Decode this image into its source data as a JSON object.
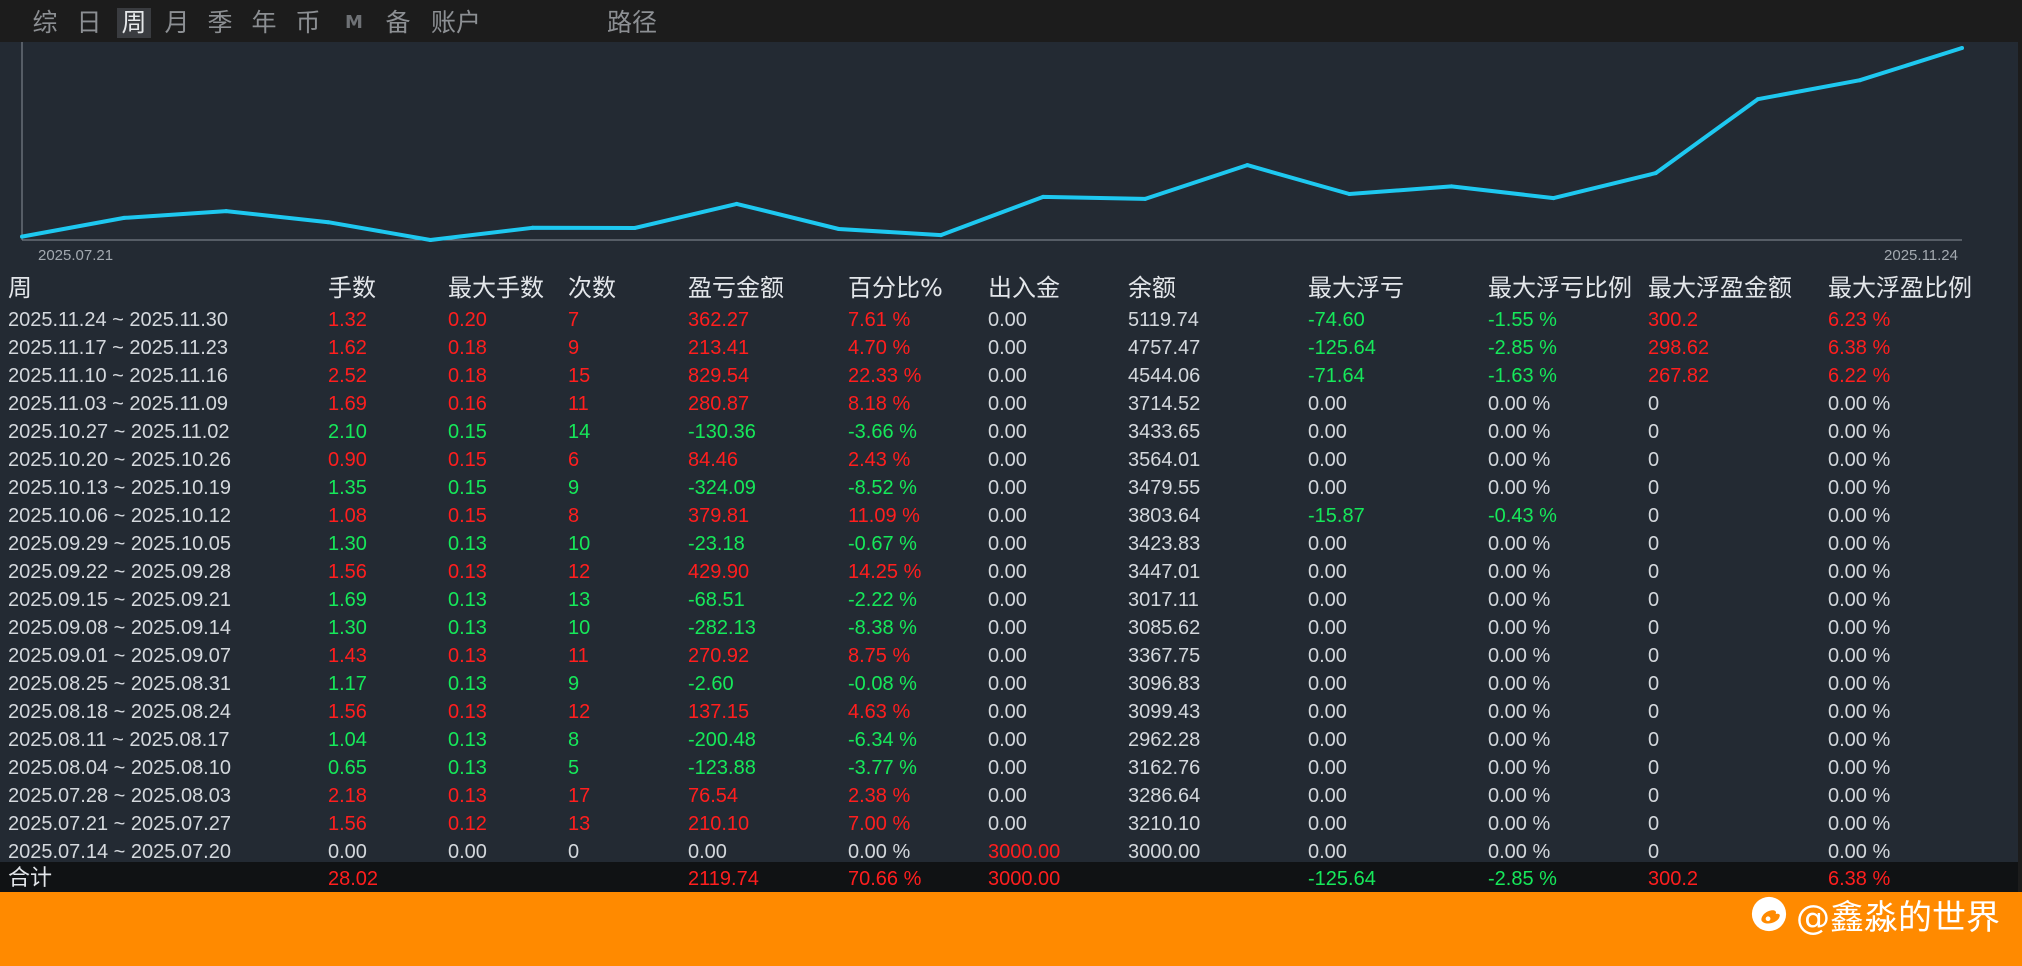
{
  "tabs": [
    {
      "label": "综",
      "active": false
    },
    {
      "label": "日",
      "active": false
    },
    {
      "label": "周",
      "active": true
    },
    {
      "label": "月",
      "active": false
    },
    {
      "label": "季",
      "active": false
    },
    {
      "label": "年",
      "active": false
    },
    {
      "label": "币",
      "active": false
    },
    {
      "label": "M",
      "active": false
    },
    {
      "label": "备",
      "active": false
    },
    {
      "label": "账户",
      "active": false
    },
    {
      "label": "路径",
      "active": false
    }
  ],
  "chart_data": {
    "type": "line",
    "color": "#1ec8f0",
    "x": [
      "2025.07.14",
      "2025.07.21",
      "2025.07.28",
      "2025.08.04",
      "2025.08.11",
      "2025.08.18",
      "2025.08.25",
      "2025.09.01",
      "2025.09.08",
      "2025.09.15",
      "2025.09.22",
      "2025.09.29",
      "2025.10.06",
      "2025.10.13",
      "2025.10.20",
      "2025.10.27",
      "2025.11.03",
      "2025.11.10",
      "2025.11.17",
      "2025.11.24"
    ],
    "values": [
      3000.0,
      3210.1,
      3286.64,
      3162.76,
      2962.28,
      3099.43,
      3096.83,
      3367.75,
      3085.62,
      3017.11,
      3447.01,
      3423.83,
      3803.64,
      3479.55,
      3564.01,
      3433.65,
      3714.52,
      4544.06,
      4757.47,
      5119.74
    ],
    "x_tick_first": "2025.07.21",
    "x_tick_last": "2025.11.24"
  },
  "table": {
    "headers": [
      "周",
      "手数",
      "最大手数",
      "次数",
      "盈亏金额",
      "百分比%",
      "出入金",
      "余额",
      "最大浮亏",
      "最大浮亏比例",
      "最大浮盈金额",
      "最大浮盈比例"
    ],
    "rows": [
      [
        "2025.11.24 ~ 2025.11.30",
        "1.32",
        "0.20",
        "7",
        "362.27",
        "7.61 %",
        "0.00",
        "5119.74",
        "-74.60",
        "-1.55 %",
        "300.2",
        "6.23 %"
      ],
      [
        "2025.11.17 ~ 2025.11.23",
        "1.62",
        "0.18",
        "9",
        "213.41",
        "4.70 %",
        "0.00",
        "4757.47",
        "-125.64",
        "-2.85 %",
        "298.62",
        "6.38 %"
      ],
      [
        "2025.11.10 ~ 2025.11.16",
        "2.52",
        "0.18",
        "15",
        "829.54",
        "22.33 %",
        "0.00",
        "4544.06",
        "-71.64",
        "-1.63 %",
        "267.82",
        "6.22 %"
      ],
      [
        "2025.11.03 ~ 2025.11.09",
        "1.69",
        "0.16",
        "11",
        "280.87",
        "8.18 %",
        "0.00",
        "3714.52",
        "0.00",
        "0.00 %",
        "0",
        "0.00 %"
      ],
      [
        "2025.10.27 ~ 2025.11.02",
        "2.10",
        "0.15",
        "14",
        "-130.36",
        "-3.66 %",
        "0.00",
        "3433.65",
        "0.00",
        "0.00 %",
        "0",
        "0.00 %"
      ],
      [
        "2025.10.20 ~ 2025.10.26",
        "0.90",
        "0.15",
        "6",
        "84.46",
        "2.43 %",
        "0.00",
        "3564.01",
        "0.00",
        "0.00 %",
        "0",
        "0.00 %"
      ],
      [
        "2025.10.13 ~ 2025.10.19",
        "1.35",
        "0.15",
        "9",
        "-324.09",
        "-8.52 %",
        "0.00",
        "3479.55",
        "0.00",
        "0.00 %",
        "0",
        "0.00 %"
      ],
      [
        "2025.10.06 ~ 2025.10.12",
        "1.08",
        "0.15",
        "8",
        "379.81",
        "11.09 %",
        "0.00",
        "3803.64",
        "-15.87",
        "-0.43 %",
        "0",
        "0.00 %"
      ],
      [
        "2025.09.29 ~ 2025.10.05",
        "1.30",
        "0.13",
        "10",
        "-23.18",
        "-0.67 %",
        "0.00",
        "3423.83",
        "0.00",
        "0.00 %",
        "0",
        "0.00 %"
      ],
      [
        "2025.09.22 ~ 2025.09.28",
        "1.56",
        "0.13",
        "12",
        "429.90",
        "14.25 %",
        "0.00",
        "3447.01",
        "0.00",
        "0.00 %",
        "0",
        "0.00 %"
      ],
      [
        "2025.09.15 ~ 2025.09.21",
        "1.69",
        "0.13",
        "13",
        "-68.51",
        "-2.22 %",
        "0.00",
        "3017.11",
        "0.00",
        "0.00 %",
        "0",
        "0.00 %"
      ],
      [
        "2025.09.08 ~ 2025.09.14",
        "1.30",
        "0.13",
        "10",
        "-282.13",
        "-8.38 %",
        "0.00",
        "3085.62",
        "0.00",
        "0.00 %",
        "0",
        "0.00 %"
      ],
      [
        "2025.09.01 ~ 2025.09.07",
        "1.43",
        "0.13",
        "11",
        "270.92",
        "8.75 %",
        "0.00",
        "3367.75",
        "0.00",
        "0.00 %",
        "0",
        "0.00 %"
      ],
      [
        "2025.08.25 ~ 2025.08.31",
        "1.17",
        "0.13",
        "9",
        "-2.60",
        "-0.08 %",
        "0.00",
        "3096.83",
        "0.00",
        "0.00 %",
        "0",
        "0.00 %"
      ],
      [
        "2025.08.18 ~ 2025.08.24",
        "1.56",
        "0.13",
        "12",
        "137.15",
        "4.63 %",
        "0.00",
        "3099.43",
        "0.00",
        "0.00 %",
        "0",
        "0.00 %"
      ],
      [
        "2025.08.11 ~ 2025.08.17",
        "1.04",
        "0.13",
        "8",
        "-200.48",
        "-6.34 %",
        "0.00",
        "2962.28",
        "0.00",
        "0.00 %",
        "0",
        "0.00 %"
      ],
      [
        "2025.08.04 ~ 2025.08.10",
        "0.65",
        "0.13",
        "5",
        "-123.88",
        "-3.77 %",
        "0.00",
        "3162.76",
        "0.00",
        "0.00 %",
        "0",
        "0.00 %"
      ],
      [
        "2025.07.28 ~ 2025.08.03",
        "2.18",
        "0.13",
        "17",
        "76.54",
        "2.38 %",
        "0.00",
        "3286.64",
        "0.00",
        "0.00 %",
        "0",
        "0.00 %"
      ],
      [
        "2025.07.21 ~ 2025.07.27",
        "1.56",
        "0.12",
        "13",
        "210.10",
        "7.00 %",
        "0.00",
        "3210.10",
        "0.00",
        "0.00 %",
        "0",
        "0.00 %"
      ],
      [
        "2025.07.14 ~ 2025.07.20",
        "0.00",
        "0.00",
        "0",
        "0.00",
        "0.00 %",
        "3000.00",
        "3000.00",
        "0.00",
        "0.00 %",
        "0",
        "0.00 %"
      ]
    ],
    "total": [
      "合计",
      "28.02",
      "",
      "",
      "2119.74",
      "70.66 %",
      "3000.00",
      "",
      "-125.64",
      "-2.85 %",
      "300.2",
      "6.38 %"
    ]
  },
  "colors": {
    "profit": "#ff1e1e",
    "loss": "#16e85a",
    "neutral": "#d4d8dd",
    "bottom_bar": "#ff8a00"
  },
  "watermark": {
    "icon": "weibo-logo-icon",
    "text": "@鑫淼的世界"
  }
}
